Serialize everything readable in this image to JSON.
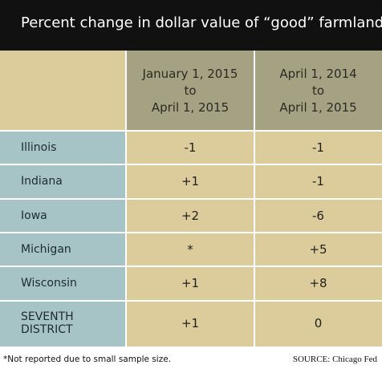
{
  "title": "Percent change in dollar value of “good” farmland",
  "chart_data": {
    "type": "table",
    "columns": [
      "",
      "January 1, 2015\nto\nApril 1, 2015",
      "April 1, 2014\nto\nApril 1, 2015"
    ],
    "column_lines": [
      [
        "January 1, 2015",
        "to",
        "April 1, 2015"
      ],
      [
        "April 1, 2014",
        "to",
        "April 1, 2015"
      ]
    ],
    "rows": [
      {
        "label": "Illinois",
        "label_lines": [
          "Illinois"
        ],
        "values": [
          "-1",
          "-1"
        ]
      },
      {
        "label": "Indiana",
        "label_lines": [
          "Indiana"
        ],
        "values": [
          "+1",
          "-1"
        ]
      },
      {
        "label": "Iowa",
        "label_lines": [
          "Iowa"
        ],
        "values": [
          "+2",
          "-6"
        ]
      },
      {
        "label": "Michigan",
        "label_lines": [
          "Michigan"
        ],
        "values": [
          "*",
          "+5"
        ]
      },
      {
        "label": "Wisconsin",
        "label_lines": [
          "Wisconsin"
        ],
        "values": [
          "+1",
          "+8"
        ]
      },
      {
        "label": "SEVENTH DISTRICT",
        "label_lines": [
          "SEVENTH",
          "DISTRICT"
        ],
        "values": [
          "+1",
          "0"
        ]
      }
    ]
  },
  "footnote": "*Not reported due to small sample size.",
  "source": "SOURCE: Chicago Fed",
  "colors": {
    "title_bg": "#111111",
    "header_bg": "#a4a282",
    "cell_bg": "#dccc9c",
    "label_bg": "#a6c4c5"
  }
}
